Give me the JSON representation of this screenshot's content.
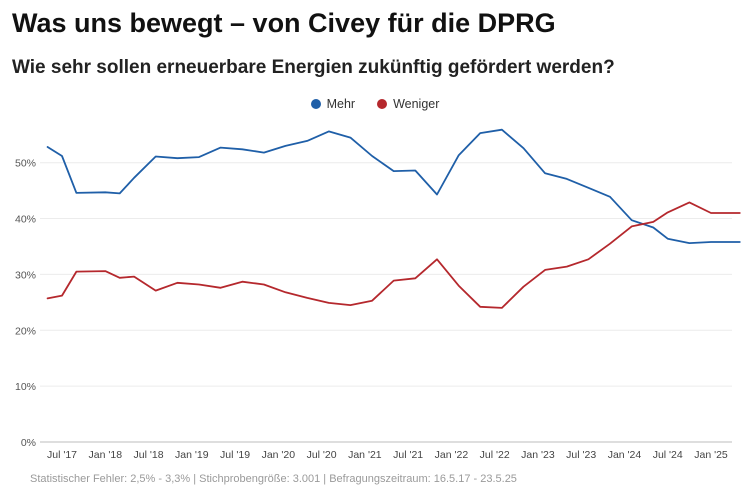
{
  "title": "Was uns bewegt – von Civey für die DPRG",
  "subtitle": "Wie sehr sollen erneuerbare Energien zukünftig gefördert werden?",
  "footer": "Statistischer Fehler: 2,5% - 3,3% | Stichprobengröße: 3.001 | Befragungszeitraum: 16.5.17 - 23.5.25",
  "chart_data": {
    "type": "line",
    "x_tick_labels": [
      "Jul '17",
      "Jan '18",
      "Jul '18",
      "Jan '19",
      "Jul '19",
      "Jan '20",
      "Jul '20",
      "Jan '21",
      "Jul '21",
      "Jan '22",
      "Jul '22",
      "Jan '23",
      "Jul '23",
      "Jan '24",
      "Jul '24",
      "Jan '25"
    ],
    "y_tick_labels": [
      "0%",
      "10%",
      "20%",
      "30%",
      "40%",
      "50%"
    ],
    "ylim": [
      0,
      58
    ],
    "grid": true,
    "legend_position": "top-center",
    "x": [
      "May '17",
      "Jul '17",
      "Sep '17",
      "Jan '18",
      "Mar '18",
      "May '18",
      "Aug '18",
      "Nov '18",
      "Feb '19",
      "May '19",
      "Aug '19",
      "Nov '19",
      "Feb '20",
      "May '20",
      "Aug '20",
      "Nov '20",
      "Feb '21",
      "May '21",
      "Aug '21",
      "Nov '21",
      "Feb '22",
      "May '22",
      "Aug '22",
      "Nov '22",
      "Feb '23",
      "May '23",
      "Aug '23",
      "Nov '23",
      "Feb '24",
      "May '24",
      "Jul '24",
      "Oct '24",
      "Jan '25",
      "Mar '25",
      "May '25"
    ],
    "series": [
      {
        "name": "Mehr",
        "color": "#1f5fa8",
        "values": [
          52.8,
          51.2,
          44.6,
          44.7,
          44.5,
          47.3,
          51.1,
          50.8,
          51.0,
          52.7,
          52.4,
          51.8,
          53.0,
          53.9,
          55.6,
          54.5,
          51.2,
          48.5,
          48.6,
          44.3,
          51.3,
          55.3,
          55.9,
          52.6,
          48.1,
          47.1,
          45.5,
          43.9,
          39.7,
          38.4,
          36.4,
          35.6,
          35.8,
          35.8,
          35.8
        ]
      },
      {
        "name": "Weniger",
        "color": "#b5282d",
        "values": [
          25.7,
          26.2,
          30.5,
          30.6,
          29.4,
          29.6,
          27.1,
          28.5,
          28.2,
          27.6,
          28.7,
          28.2,
          26.8,
          25.8,
          24.9,
          24.5,
          25.3,
          28.9,
          29.3,
          32.7,
          28.0,
          24.2,
          24.0,
          27.8,
          30.8,
          31.4,
          32.7,
          35.5,
          38.6,
          39.4,
          41.1,
          42.9,
          41.0,
          41.0,
          41.0
        ]
      }
    ]
  }
}
